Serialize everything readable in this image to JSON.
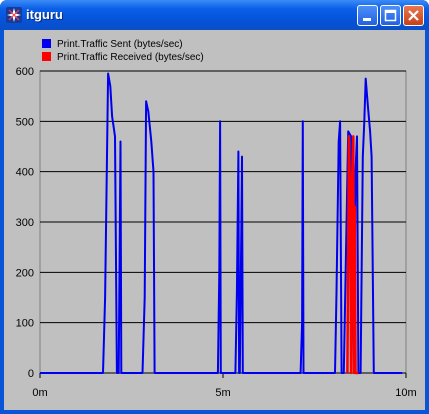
{
  "window": {
    "title": "itguru",
    "buttons": {
      "minimize": "minimize",
      "maximize": "maximize",
      "close": "close"
    }
  },
  "colors": {
    "sent": "#0000ee",
    "received": "#ff0000",
    "grid": "#000000",
    "plot_bg": "#c0c0c0"
  },
  "chart_data": {
    "type": "line",
    "title": "",
    "xlabel": "",
    "ylabel": "",
    "x_ticks": [
      "0m",
      "5m",
      "10m"
    ],
    "x_tick_values": [
      0,
      5,
      10
    ],
    "y_ticks": [
      "0",
      "100",
      "200",
      "300",
      "400",
      "500",
      "600"
    ],
    "y_tick_values": [
      0,
      100,
      200,
      300,
      400,
      500,
      600
    ],
    "xlim": [
      0,
      10
    ],
    "ylim": [
      0,
      600
    ],
    "grid": "horizontal",
    "legend_position": "top-left",
    "series": [
      {
        "name": "Print.Traffic Sent (bytes/sec)",
        "color": "#0000ee",
        "x": [
          0,
          1.72,
          1.78,
          1.86,
          1.92,
          1.97,
          2.05,
          2.1,
          2.15,
          2.18,
          2.2,
          2.22,
          2.24,
          2.26,
          2.3,
          2.34,
          2.8,
          2.86,
          2.9,
          2.96,
          3.04,
          3.1,
          3.13,
          3.16,
          3.2,
          4.86,
          4.9,
          4.92,
          4.94,
          4.98,
          5.34,
          5.38,
          5.42,
          5.44,
          5.46,
          5.5,
          5.52,
          5.54,
          5.56,
          5.58,
          5.6,
          5.64,
          7.12,
          7.16,
          7.18,
          7.2,
          7.24,
          8.06,
          8.1,
          8.16,
          8.2,
          8.24,
          8.28,
          8.3,
          8.36,
          8.42,
          8.5,
          8.58,
          8.62,
          8.66,
          8.7,
          8.76,
          8.82,
          8.86,
          8.9,
          8.96,
          9.02,
          9.06,
          9.12,
          9.16,
          9.2,
          9.9
        ],
        "y": [
          0,
          0,
          150,
          595,
          570,
          510,
          470,
          0,
          0,
          280,
          460,
          0,
          0,
          0,
          0,
          0,
          0,
          150,
          540,
          520,
          460,
          400,
          0,
          0,
          0,
          0,
          200,
          500,
          0,
          0,
          0,
          160,
          440,
          0,
          0,
          280,
          430,
          0,
          0,
          0,
          0,
          0,
          0,
          100,
          500,
          0,
          0,
          0,
          160,
          460,
          500,
          0,
          0,
          0,
          240,
          480,
          470,
          0,
          400,
          470,
          0,
          0,
          430,
          500,
          585,
          530,
          480,
          430,
          0,
          0,
          0,
          0
        ]
      },
      {
        "name": "Print.Traffic Received (bytes/sec)",
        "color": "#ff0000",
        "x": [
          8.4,
          8.44,
          8.48,
          8.5,
          8.52,
          8.56,
          8.58,
          8.6,
          8.62,
          8.64,
          8.66,
          8.7
        ],
        "y": [
          0,
          470,
          300,
          0,
          360,
          470,
          0,
          330,
          0,
          0,
          0,
          0
        ]
      }
    ]
  }
}
